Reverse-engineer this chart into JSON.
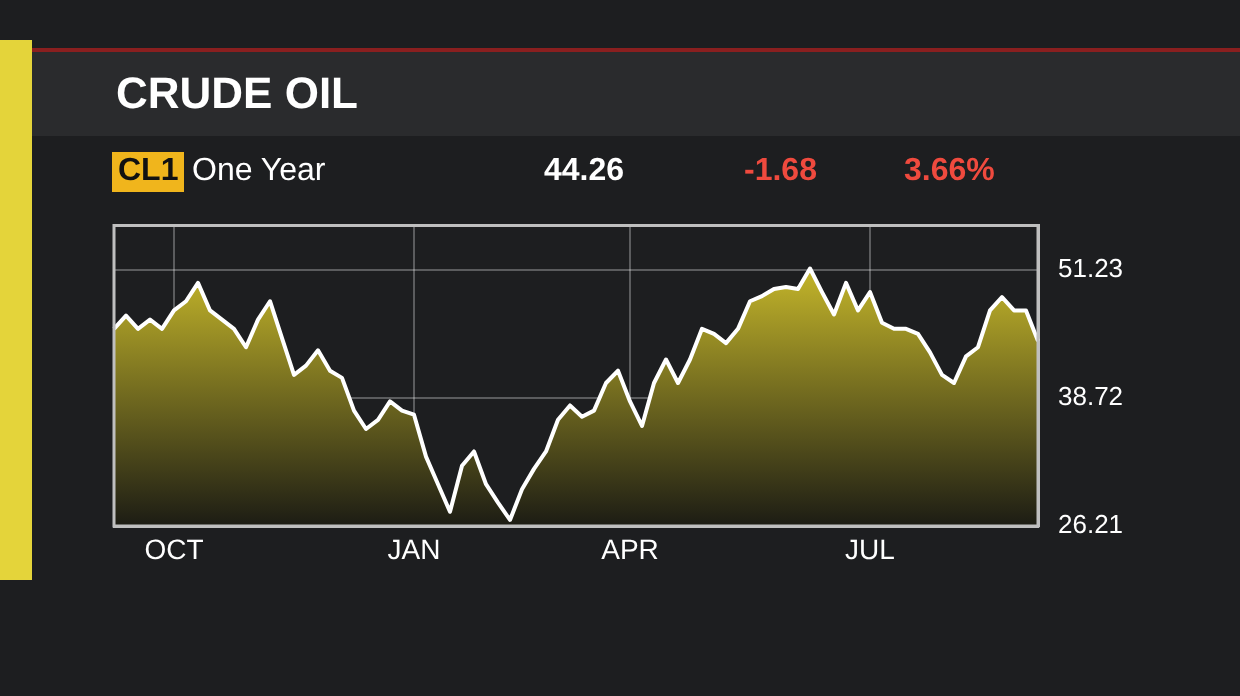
{
  "chart_data": {
    "type": "area",
    "title": "CRUDE OIL",
    "subtitle": "One Year",
    "annotations": [
      "CL1",
      "44.26",
      "-1.68",
      "3.66%"
    ],
    "categories": [
      null,
      null,
      null,
      null,
      null,
      "OCT",
      null,
      null,
      null,
      null,
      null,
      null,
      null,
      null,
      null,
      null,
      null,
      null,
      null,
      null,
      null,
      null,
      null,
      null,
      null,
      "JAN",
      null,
      null,
      null,
      null,
      null,
      null,
      null,
      null,
      null,
      null,
      null,
      null,
      null,
      null,
      null,
      null,
      null,
      "APR",
      null,
      null,
      null,
      null,
      null,
      null,
      null,
      null,
      null,
      null,
      null,
      null,
      null,
      null,
      null,
      null,
      null,
      null,
      null,
      "JUL",
      null,
      null,
      null,
      null,
      null,
      null,
      null,
      null,
      null,
      null,
      null,
      null,
      null,
      null
    ],
    "series": [
      {
        "color": "#e0cf2e",
        "values": [
          45.5,
          46.8,
          45.5,
          46.4,
          45.5,
          47.3,
          48.2,
          50.0,
          47.3,
          46.4,
          45.5,
          43.7,
          46.4,
          48.2,
          44.6,
          41.0,
          41.9,
          43.4,
          41.4,
          40.7,
          37.5,
          35.7,
          36.6,
          38.4,
          37.5,
          37.1,
          33.0,
          30.3,
          27.6,
          32.1,
          33.5,
          30.3,
          28.5,
          26.8,
          29.8,
          31.8,
          33.5,
          36.6,
          38.0,
          36.9,
          37.5,
          40.2,
          41.4,
          38.4,
          36.0,
          40.2,
          42.5,
          40.2,
          42.5,
          45.5,
          45.0,
          44.1,
          45.5,
          48.2,
          48.7,
          49.4,
          49.6,
          49.4,
          51.4,
          49.1,
          46.9,
          50.0,
          47.3,
          49.1,
          46.1,
          45.5,
          45.5,
          45.0,
          43.2,
          41.0,
          40.2,
          42.8,
          43.7,
          47.3,
          48.6,
          47.3,
          47.3,
          44.3
        ]
      }
    ],
    "ylim": [
      26.21,
      55.6
    ],
    "yticks": [
      26.21,
      38.72,
      51.23
    ],
    "grid": true,
    "legend": false,
    "marker": "none"
  }
}
